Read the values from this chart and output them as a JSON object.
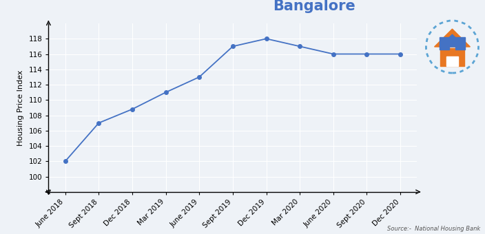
{
  "title": "Bangalore",
  "ylabel": "Housing Price Index",
  "source_text": "Source:-  National Housing Bank",
  "x_labels": [
    "June 2018",
    "Sept 2018",
    "Dec 2018",
    "Mar 2019",
    "June 2019",
    "Sept 2019",
    "Dec 2019",
    "Mar 2020",
    "June 2020",
    "Sept 2020",
    "Dec 2020"
  ],
  "y_values": [
    102,
    107,
    108.8,
    111,
    113,
    117,
    118,
    117,
    116,
    116,
    116
  ],
  "line_color": "#4472C4",
  "marker": "o",
  "marker_size": 4,
  "ylim": [
    98,
    120
  ],
  "yticks": [
    100,
    102,
    104,
    106,
    108,
    110,
    112,
    114,
    116,
    118
  ],
  "background_color": "#eef2f7",
  "grid_color": "#ffffff",
  "title_color": "#4472C4",
  "title_fontsize": 15,
  "ylabel_fontsize": 8,
  "tick_labelsize": 7.5,
  "logo_circle_color": "#5ba4d4",
  "logo_roof_color": "#4472C4",
  "logo_body_color": "#E87722",
  "logo_door_color": "#ffffff"
}
